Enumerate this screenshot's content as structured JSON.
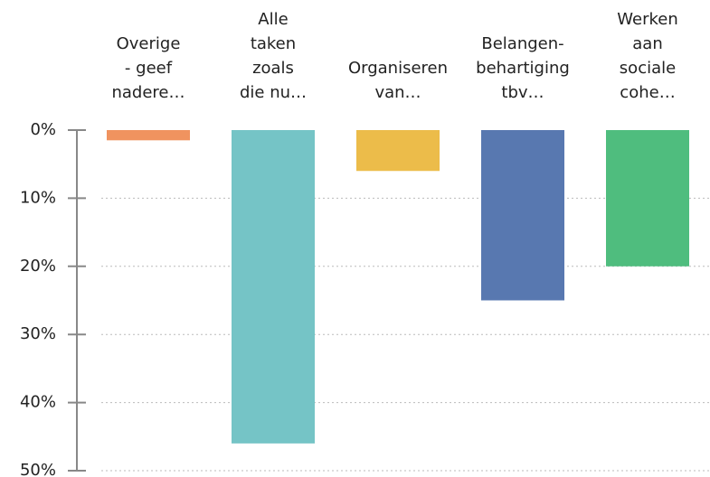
{
  "chart_data": {
    "type": "bar",
    "categories": [
      "Overige\n- geef\nnadere…",
      "Alle\ntaken\nzoals\ndie nu…",
      "Organiseren\nvan…",
      "Belangen-\nbehartiging\ntbv…",
      "Werken\naan\nsociale\ncohe…"
    ],
    "values": [
      1.5,
      46,
      6,
      25,
      20
    ],
    "colors": [
      "#f0935f",
      "#75c4c6",
      "#ecbc4a",
      "#5878b0",
      "#4fbd7e"
    ],
    "ylim": [
      0,
      50
    ],
    "y_inverted": true,
    "yticks": [
      {
        "value": 0,
        "label": "0%"
      },
      {
        "value": 10,
        "label": "10%"
      },
      {
        "value": 20,
        "label": "20%"
      },
      {
        "value": 30,
        "label": "30%"
      },
      {
        "value": 40,
        "label": "40%"
      },
      {
        "value": 50,
        "label": "50%"
      }
    ],
    "grid": true
  }
}
